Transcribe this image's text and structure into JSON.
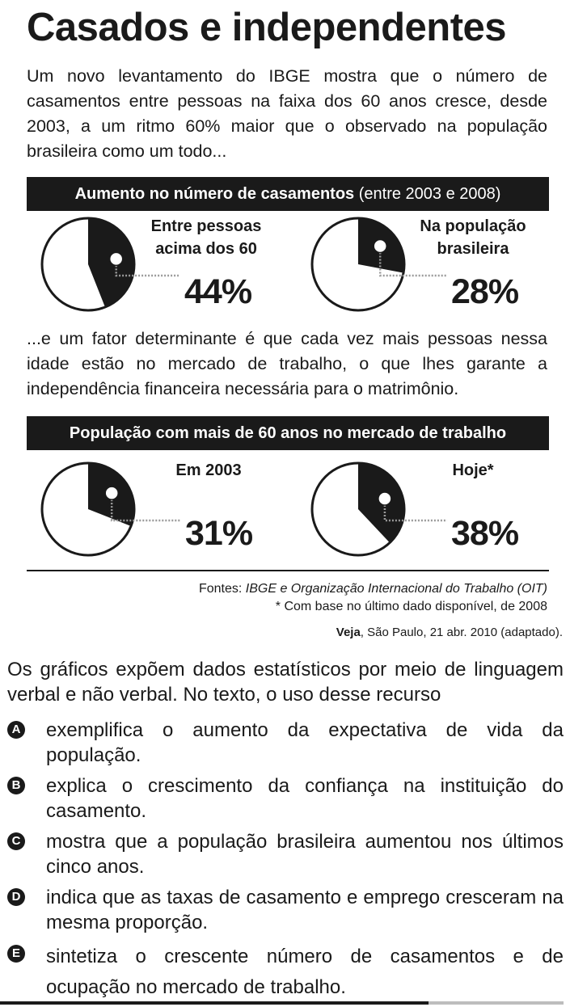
{
  "title": "Casados e independentes",
  "intro": "Um novo levantamento do IBGE mostra que o número de casamentos entre pessoas na faixa dos 60 anos cresce, desde 2003, a um ritmo 60% maior que o observado na população brasileira como um todo...",
  "banner1": {
    "bold": "Aumento no número de casamentos",
    "normal": " (entre 2003 e 2008)"
  },
  "middle": "...e um fator determinante é que cada vez mais pessoas nessa idade estão no mercado de trabalho, o que lhes garante a independência financeira necessária para o matrimônio.",
  "banner2": {
    "bold": "População com mais de 60 anos no mercado de trabalho"
  },
  "colors": {
    "ink": "#1a1a1a",
    "paper": "#ffffff",
    "leader": "#9a9a9a"
  },
  "chart_data": [
    {
      "type": "pie",
      "title": "Aumento no número de casamentos (entre 2003 e 2008)",
      "label": "Entre pessoas acima dos 60",
      "value_pct": 44,
      "display": "44%"
    },
    {
      "type": "pie",
      "title": "Aumento no número de casamentos (entre 2003 e 2008)",
      "label": "Na população brasileira",
      "value_pct": 28,
      "display": "28%"
    },
    {
      "type": "pie",
      "title": "População com mais de 60 anos no mercado de trabalho",
      "label": "Em 2003",
      "value_pct": 31,
      "display": "31%"
    },
    {
      "type": "pie",
      "title": "População com mais de 60 anos no mercado de trabalho",
      "label": "Hoje*",
      "value_pct": 38,
      "display": "38%"
    }
  ],
  "labels": {
    "c1_line1": "Entre pessoas",
    "c1_line2": "acima dos 60",
    "c2_line1": "Na população",
    "c2_line2": "brasileira",
    "c3_line1": "Em 2003",
    "c4_line1": "Hoje*"
  },
  "sources": {
    "prefix": "Fontes: ",
    "italic": "IBGE e Organização Internacional do Trabalho (OIT)",
    "note": "* Com base no último dado disponível, de 2008"
  },
  "citation": {
    "bold": "Veja",
    "rest": ", São Paulo, 21 abr. 2010 (adaptado)."
  },
  "question": "Os gráficos expõem dados estatísticos por meio de linguagem verbal e não verbal. No texto, o uso desse recurso",
  "options": [
    {
      "letter": "A",
      "text": "exemplifica o aumento da expectativa de vida da população."
    },
    {
      "letter": "B",
      "text": "explica o crescimento da confiança na instituição do casamento."
    },
    {
      "letter": "C",
      "text": "mostra que a população brasileira aumentou nos últimos cinco anos."
    },
    {
      "letter": "D",
      "text": "indica que as taxas de casamento e emprego cresceram na mesma proporção."
    },
    {
      "letter": "E",
      "text": "sintetiza o crescente número de casamentos e de ocupação no mercado de trabalho."
    }
  ]
}
